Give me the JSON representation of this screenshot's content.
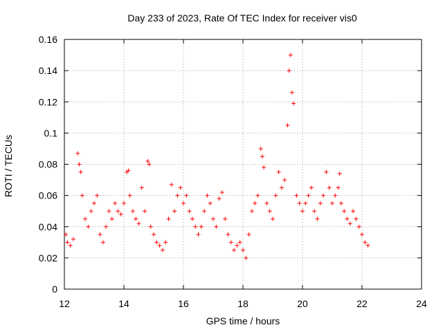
{
  "chart_data": {
    "type": "scatter",
    "title": "Day 233 of 2023, Rate Of TEC Index for receiver vis0",
    "xlabel": "GPS time / hours",
    "ylabel": "ROTI / TECUs",
    "xlim": [
      12,
      24
    ],
    "ylim": [
      0,
      0.16
    ],
    "xticks": [
      "12",
      "14",
      "16",
      "18",
      "20",
      "22",
      "24"
    ],
    "yticks": [
      "0",
      "0.02",
      "0.04",
      "0.06",
      "0.08",
      "0.1",
      "0.12",
      "0.14",
      "0.16"
    ],
    "grid": true,
    "marker": "+",
    "color": "#ff0000",
    "series": [
      {
        "name": "vis0",
        "x": [
          12.05,
          12.1,
          12.2,
          12.3,
          12.45,
          12.5,
          12.55,
          12.6,
          12.7,
          12.8,
          12.9,
          13.0,
          13.1,
          13.2,
          13.3,
          13.4,
          13.5,
          13.6,
          13.7,
          13.8,
          13.9,
          14.0,
          14.1,
          14.15,
          14.2,
          14.3,
          14.4,
          14.5,
          14.6,
          14.7,
          14.8,
          14.85,
          14.9,
          15.0,
          15.1,
          15.2,
          15.3,
          15.4,
          15.5,
          15.6,
          15.7,
          15.8,
          15.9,
          16.0,
          16.1,
          16.2,
          16.3,
          16.4,
          16.5,
          16.6,
          16.7,
          16.8,
          16.9,
          17.0,
          17.1,
          17.2,
          17.3,
          17.4,
          17.5,
          17.6,
          17.7,
          17.8,
          17.9,
          18.0,
          18.1,
          18.2,
          18.3,
          18.4,
          18.5,
          18.6,
          18.65,
          18.7,
          18.8,
          18.9,
          19.0,
          19.1,
          19.2,
          19.3,
          19.4,
          19.5,
          19.55,
          19.6,
          19.65,
          19.7,
          19.8,
          19.9,
          20.0,
          20.1,
          20.2,
          20.3,
          20.4,
          20.5,
          20.6,
          20.7,
          20.8,
          20.9,
          21.0,
          21.1,
          21.2,
          21.25,
          21.3,
          21.4,
          21.5,
          21.6,
          21.7,
          21.8,
          21.9,
          22.0,
          22.1,
          22.2
        ],
        "y": [
          0.035,
          0.03,
          0.028,
          0.032,
          0.087,
          0.08,
          0.075,
          0.06,
          0.045,
          0.04,
          0.05,
          0.055,
          0.06,
          0.035,
          0.03,
          0.04,
          0.05,
          0.045,
          0.055,
          0.05,
          0.048,
          0.055,
          0.075,
          0.076,
          0.06,
          0.05,
          0.045,
          0.042,
          0.065,
          0.05,
          0.082,
          0.08,
          0.04,
          0.035,
          0.03,
          0.028,
          0.025,
          0.03,
          0.045,
          0.067,
          0.05,
          0.06,
          0.065,
          0.055,
          0.06,
          0.05,
          0.045,
          0.04,
          0.035,
          0.04,
          0.05,
          0.06,
          0.055,
          0.045,
          0.04,
          0.058,
          0.062,
          0.045,
          0.035,
          0.03,
          0.025,
          0.028,
          0.03,
          0.025,
          0.02,
          0.035,
          0.05,
          0.055,
          0.06,
          0.09,
          0.085,
          0.078,
          0.055,
          0.05,
          0.045,
          0.06,
          0.075,
          0.065,
          0.07,
          0.105,
          0.14,
          0.15,
          0.126,
          0.119,
          0.06,
          0.055,
          0.05,
          0.055,
          0.06,
          0.065,
          0.05,
          0.045,
          0.055,
          0.06,
          0.075,
          0.065,
          0.055,
          0.06,
          0.065,
          0.074,
          0.055,
          0.05,
          0.045,
          0.042,
          0.05,
          0.045,
          0.04,
          0.035,
          0.03,
          0.028
        ]
      }
    ]
  }
}
